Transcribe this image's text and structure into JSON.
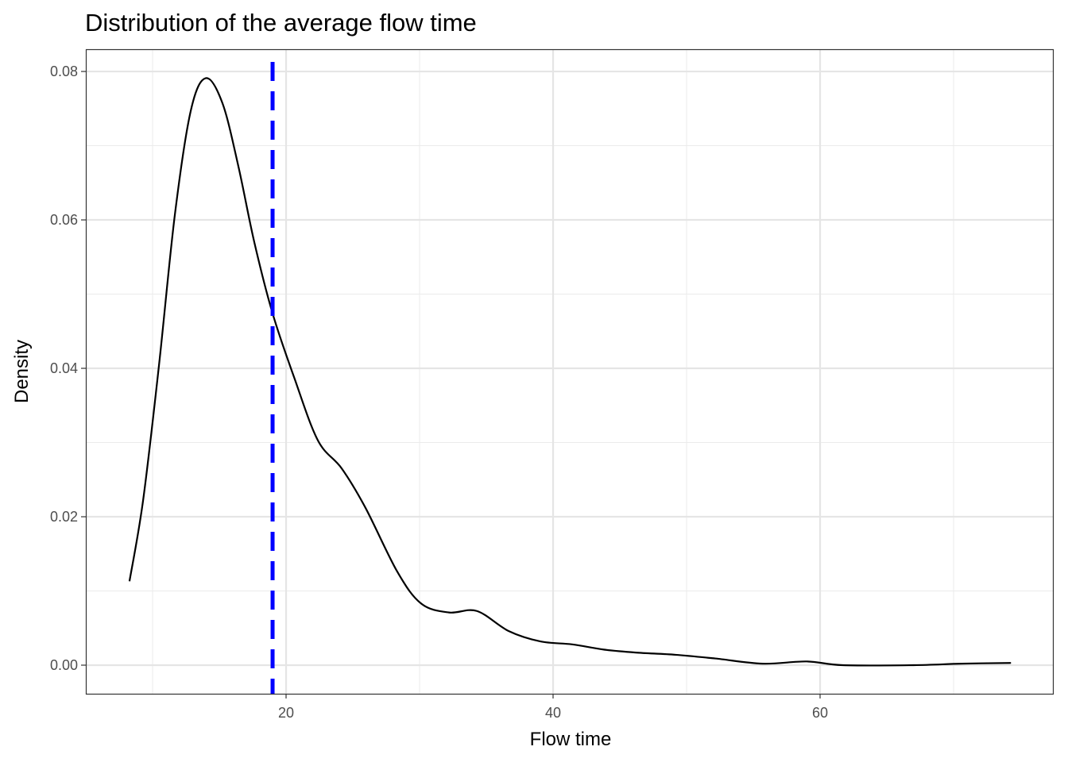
{
  "chart_data": {
    "type": "line",
    "title": "Distribution of the average flow time",
    "xlabel": "Flow time",
    "ylabel": "Density",
    "xlim": [
      5.0,
      77.5
    ],
    "ylim": [
      -0.00385,
      0.083
    ],
    "x_major_ticks": [
      20,
      40,
      60
    ],
    "x_tick_labels": [
      "20",
      "40",
      "60"
    ],
    "x_minor_ticks": [
      10,
      30,
      50,
      70
    ],
    "y_major_ticks": [
      0,
      0.02,
      0.04,
      0.06,
      0.08
    ],
    "y_tick_labels": [
      "0.00",
      "0.02",
      "0.04",
      "0.06",
      "0.08"
    ],
    "y_minor_ticks": [
      0.01,
      0.03,
      0.05,
      0.07
    ],
    "grid": true,
    "series": [
      {
        "name": "density",
        "color": "#000000",
        "x": [
          8.27,
          9.29,
          10.48,
          11.67,
          12.86,
          13.99,
          15.24,
          16.43,
          17.62,
          18.99,
          20.6,
          22.38,
          24.17,
          25.95,
          28.33,
          30.12,
          32.2,
          34.29,
          36.67,
          39.05,
          41.43,
          43.8,
          46.19,
          49.17,
          52.14,
          55.7,
          59.0,
          61.7,
          67.0,
          70.6,
          74.3
        ],
        "y": [
          0.0113,
          0.0222,
          0.0404,
          0.0607,
          0.0747,
          0.0791,
          0.0757,
          0.0672,
          0.057,
          0.0474,
          0.0388,
          0.0303,
          0.0265,
          0.0212,
          0.0126,
          0.0083,
          0.0071,
          0.0073,
          0.0046,
          0.0032,
          0.0028,
          0.0021,
          0.0017,
          0.0014,
          0.0009,
          0.0002,
          0.0005,
          0.0,
          0.0,
          0.0002,
          0.0003
        ]
      }
    ],
    "vline": {
      "x": 18.99,
      "color": "#0000ff",
      "style": "dashed"
    }
  }
}
